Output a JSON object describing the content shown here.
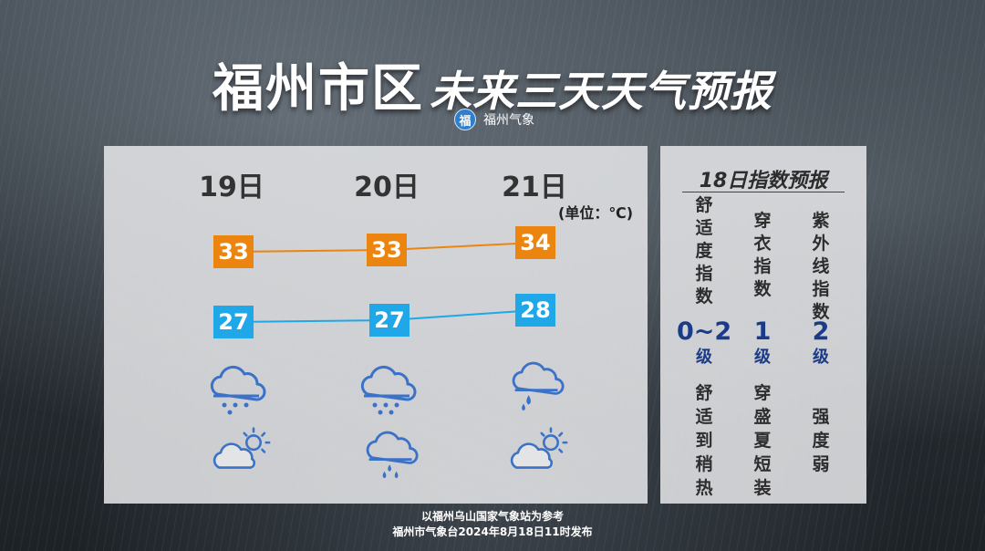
{
  "title": {
    "main": "福州市区",
    "sub": "未来三天天气预报"
  },
  "source": {
    "logo_char": "福",
    "name": "福州气象"
  },
  "forecast": {
    "unit": "(单位：℃)",
    "days": [
      {
        "date": "19日",
        "high": 33,
        "low": 27,
        "icon1": "cloud-light-rain-icon",
        "icon2": "sun-behind-cloud-icon"
      },
      {
        "date": "20日",
        "high": 33,
        "low": 27,
        "icon1": "cloud-light-rain-icon",
        "icon2": "cloud-rain-icon"
      },
      {
        "date": "21日",
        "high": 34,
        "low": 28,
        "icon1": "cloud-rain-icon",
        "icon2": "sun-behind-cloud-icon"
      }
    ],
    "colors": {
      "high": "#ec8510",
      "low": "#1fa7e8",
      "icon": "#3b72c8"
    }
  },
  "index": {
    "title": "18日指数预报",
    "items": [
      {
        "name": "舒适度指数",
        "value": "0~2",
        "level": "级",
        "desc": "舒适到稍热"
      },
      {
        "name": "穿衣指数",
        "value": "1",
        "level": "级",
        "desc": "穿盛夏短装"
      },
      {
        "name": "紫外线指数",
        "value": "2",
        "level": "级",
        "desc": "强度弱"
      }
    ]
  },
  "footer": {
    "line1": "以福州乌山国家气象站为参考",
    "line2": "福州市气象台2024年8月18日11时发布"
  }
}
